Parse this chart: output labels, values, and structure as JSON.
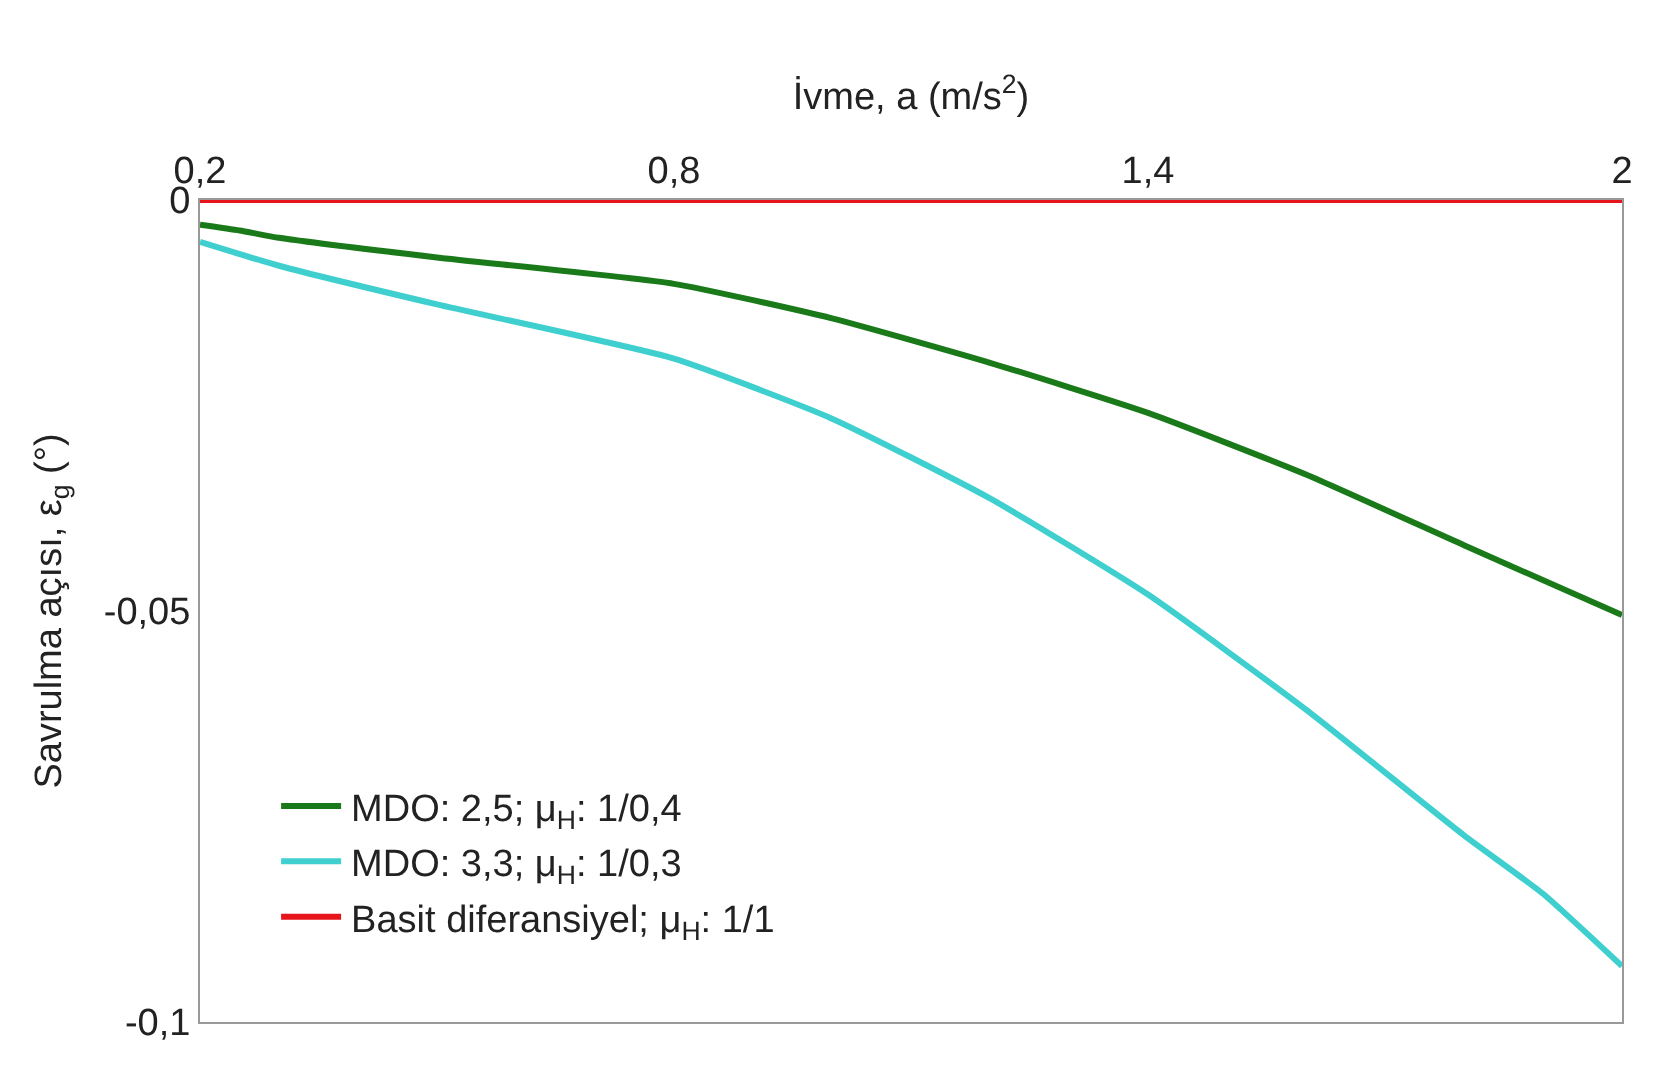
{
  "chart_data": {
    "type": "line",
    "xlabel": "İvme, a (m/s$^{2}$)",
    "ylabel": "Savrulma açısı, ε$_{g}$ (°)",
    "xlim": [
      0.2,
      2
    ],
    "xticks": [
      {
        "value": 0.2,
        "label": "0,2"
      },
      {
        "value": 0.8,
        "label": "0,8"
      },
      {
        "value": 1.4,
        "label": "1,4"
      },
      {
        "value": 2,
        "label": "2"
      }
    ],
    "ylim": [
      -0.1,
      0
    ],
    "yticks": [
      {
        "value": -0.1,
        "label": "-0,1"
      },
      {
        "value": -0.05,
        "label": "-0,05"
      },
      0
    ],
    "legend": "bottom left",
    "line_style": "solid",
    "series": [
      {
        "name": "MDO: 2,5; μ$_{H}$: 1/0,4",
        "color": "#1a7a1a",
        "x": [
          0.2,
          0.25,
          0.3,
          0.5,
          0.8,
          1.0,
          1.2,
          1.4,
          1.6,
          1.8,
          2.0
        ],
        "values": [
          -0.003,
          -0.0037,
          -0.0046,
          -0.007,
          -0.0102,
          -0.0144,
          -0.0198,
          -0.0259,
          -0.0334,
          -0.042,
          -0.0505
        ]
      },
      {
        "name": "MDO: 3,3; μ$_{H}$: 1/0,3",
        "color": "#3fcfcf",
        "x": [
          0.2,
          0.3,
          0.5,
          0.8,
          1.0,
          1.2,
          1.4,
          1.6,
          1.8,
          1.9,
          2.0
        ],
        "values": [
          -0.0051,
          -0.008,
          -0.0127,
          -0.0193,
          -0.0266,
          -0.0363,
          -0.048,
          -0.062,
          -0.0773,
          -0.0844,
          -0.0932
        ]
      },
      {
        "name": "Basit diferansiyel; μ$_{H}$: 1/1",
        "color": "#e8141c",
        "x": [
          0.2,
          2.0
        ],
        "values": [
          0,
          0
        ]
      }
    ]
  }
}
